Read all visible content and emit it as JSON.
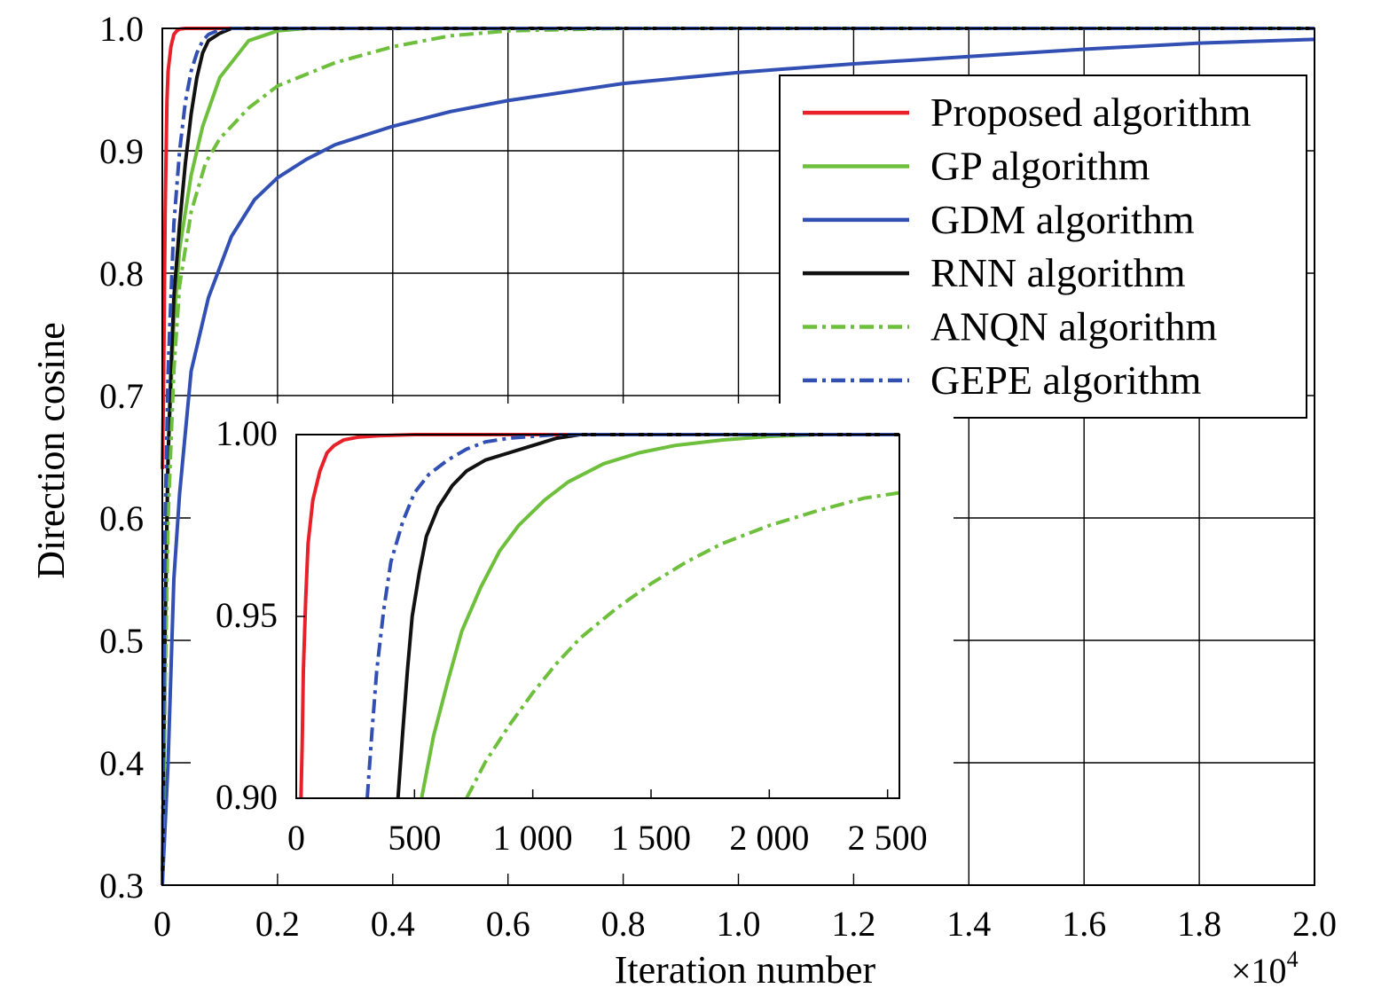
{
  "chart_data": [
    {
      "type": "line",
      "title": "",
      "xlabel": "Iteration number",
      "ylabel": "Direction cosine",
      "x_multiplier": "×10",
      "x_multiplier_exponent": "4",
      "xlim": [
        0,
        2.0
      ],
      "ylim": [
        0.3,
        1.0
      ],
      "xticks": [
        "0",
        "0.2",
        "0.4",
        "0.6",
        "0.8",
        "1.0",
        "1.2",
        "1.4",
        "1.6",
        "1.8",
        "2.0"
      ],
      "yticks": [
        "0.3",
        "0.4",
        "0.5",
        "0.6",
        "0.7",
        "0.8",
        "0.9",
        "1.0"
      ],
      "grid": true,
      "legend": "top-right",
      "series": [
        {
          "name": "Proposed algorithm",
          "color": "#e8202a",
          "dash": "solid",
          "x": [
            0,
            0.002,
            0.005,
            0.008,
            0.01,
            0.015,
            0.02,
            0.025,
            0.03,
            0.04,
            0.06,
            2.0
          ],
          "y": [
            0.64,
            0.7,
            0.85,
            0.94,
            0.965,
            0.985,
            0.995,
            0.998,
            0.9995,
            1.0,
            1.0,
            1.0
          ]
        },
        {
          "name": "GP algorithm",
          "color": "#6dbf3c",
          "dash": "solid",
          "x": [
            0,
            0.005,
            0.01,
            0.02,
            0.03,
            0.05,
            0.07,
            0.1,
            0.15,
            0.2,
            0.25,
            0.3,
            2.0
          ],
          "y": [
            0.3,
            0.5,
            0.65,
            0.76,
            0.82,
            0.88,
            0.92,
            0.96,
            0.99,
            0.998,
            1.0,
            1.0,
            1.0
          ]
        },
        {
          "name": "GDM algorithm",
          "color": "#3250b4",
          "dash": "solid",
          "x": [
            0,
            0.01,
            0.02,
            0.03,
            0.05,
            0.08,
            0.12,
            0.16,
            0.2,
            0.25,
            0.3,
            0.4,
            0.5,
            0.6,
            0.8,
            1.0,
            1.2,
            1.4,
            1.6,
            1.8,
            2.0
          ],
          "y": [
            0.3,
            0.4,
            0.55,
            0.62,
            0.72,
            0.78,
            0.83,
            0.86,
            0.878,
            0.893,
            0.905,
            0.92,
            0.932,
            0.941,
            0.955,
            0.964,
            0.971,
            0.977,
            0.983,
            0.988,
            0.991
          ]
        },
        {
          "name": "RNN algorithm",
          "color": "#111111",
          "dash": "solid",
          "x": [
            0,
            0.005,
            0.01,
            0.015,
            0.02,
            0.03,
            0.04,
            0.05,
            0.06,
            0.07,
            0.08,
            0.1,
            0.12,
            0.15,
            2.0
          ],
          "y": [
            0.3,
            0.52,
            0.65,
            0.72,
            0.78,
            0.84,
            0.89,
            0.93,
            0.96,
            0.98,
            0.99,
            0.996,
            1.0,
            1.0,
            1.0
          ]
        },
        {
          "name": "ANQN algorithm",
          "color": "#6dbf3c",
          "dash": "dashdot",
          "x": [
            0,
            0.005,
            0.01,
            0.02,
            0.03,
            0.05,
            0.075,
            0.1,
            0.15,
            0.2,
            0.3,
            0.4,
            0.5,
            0.6,
            0.8,
            2.0
          ],
          "y": [
            0.3,
            0.46,
            0.6,
            0.72,
            0.79,
            0.85,
            0.89,
            0.91,
            0.935,
            0.953,
            0.972,
            0.985,
            0.994,
            0.998,
            1.0,
            1.0
          ]
        },
        {
          "name": "GEPE algorithm",
          "color": "#3250b4",
          "dash": "dashdot",
          "x": [
            0,
            0.005,
            0.01,
            0.015,
            0.02,
            0.03,
            0.04,
            0.05,
            0.06,
            0.07,
            0.08,
            0.1,
            0.12,
            2.0
          ],
          "y": [
            0.3,
            0.6,
            0.72,
            0.78,
            0.84,
            0.9,
            0.94,
            0.965,
            0.98,
            0.99,
            0.995,
            0.999,
            1.0,
            1.0
          ]
        }
      ]
    },
    {
      "type": "line",
      "title": "",
      "xlabel": "",
      "ylabel": "",
      "xlim": [
        0,
        2550
      ],
      "ylim": [
        0.9,
        1.0
      ],
      "xticks": [
        "0",
        "500",
        "1 000",
        "1 500",
        "2 000",
        "2 500"
      ],
      "yticks": [
        "0.90",
        "0.95",
        "1.00"
      ],
      "grid": false,
      "series": [
        {
          "color": "#e8202a",
          "dash": "solid",
          "x": [
            20,
            25,
            30,
            40,
            50,
            70,
            100,
            130,
            160,
            200,
            260,
            350,
            500,
            1000,
            2550
          ],
          "y": [
            0.9,
            0.915,
            0.935,
            0.955,
            0.97,
            0.982,
            0.99,
            0.995,
            0.997,
            0.9985,
            0.9993,
            0.9997,
            1.0,
            1.0,
            1.0
          ]
        },
        {
          "color": "#6dbf3c",
          "dash": "solid",
          "x": [
            530,
            580,
            640,
            700,
            780,
            860,
            940,
            1050,
            1150,
            1300,
            1450,
            1600,
            1800,
            2000,
            2200,
            2550
          ],
          "y": [
            0.9,
            0.917,
            0.932,
            0.946,
            0.958,
            0.968,
            0.975,
            0.982,
            0.987,
            0.992,
            0.995,
            0.997,
            0.9985,
            0.9995,
            1.0,
            1.0
          ]
        },
        {
          "color": "#111111",
          "dash": "solid",
          "x": [
            430,
            450,
            470,
            490,
            520,
            550,
            600,
            660,
            720,
            800,
            900,
            1000,
            1100,
            1200,
            1300,
            2550
          ],
          "y": [
            0.9,
            0.918,
            0.935,
            0.95,
            0.962,
            0.972,
            0.98,
            0.986,
            0.99,
            0.993,
            0.995,
            0.997,
            0.999,
            1.0,
            1.0,
            1.0
          ]
        },
        {
          "color": "#6dbf3c",
          "dash": "dashdot",
          "x": [
            720,
            800,
            900,
            1000,
            1100,
            1200,
            1350,
            1500,
            1650,
            1800,
            2000,
            2200,
            2400,
            2550
          ],
          "y": [
            0.9,
            0.91,
            0.92,
            0.929,
            0.937,
            0.944,
            0.952,
            0.959,
            0.965,
            0.97,
            0.975,
            0.979,
            0.9825,
            0.984
          ]
        },
        {
          "color": "#3250b4",
          "dash": "dashdot",
          "x": [
            300,
            320,
            340,
            370,
            400,
            450,
            500,
            560,
            640,
            720,
            800,
            900,
            1000,
            1100,
            1200,
            2550
          ],
          "y": [
            0.9,
            0.918,
            0.935,
            0.952,
            0.965,
            0.976,
            0.984,
            0.989,
            0.993,
            0.996,
            0.998,
            0.999,
            0.9995,
            1.0,
            1.0,
            1.0
          ]
        }
      ]
    }
  ]
}
